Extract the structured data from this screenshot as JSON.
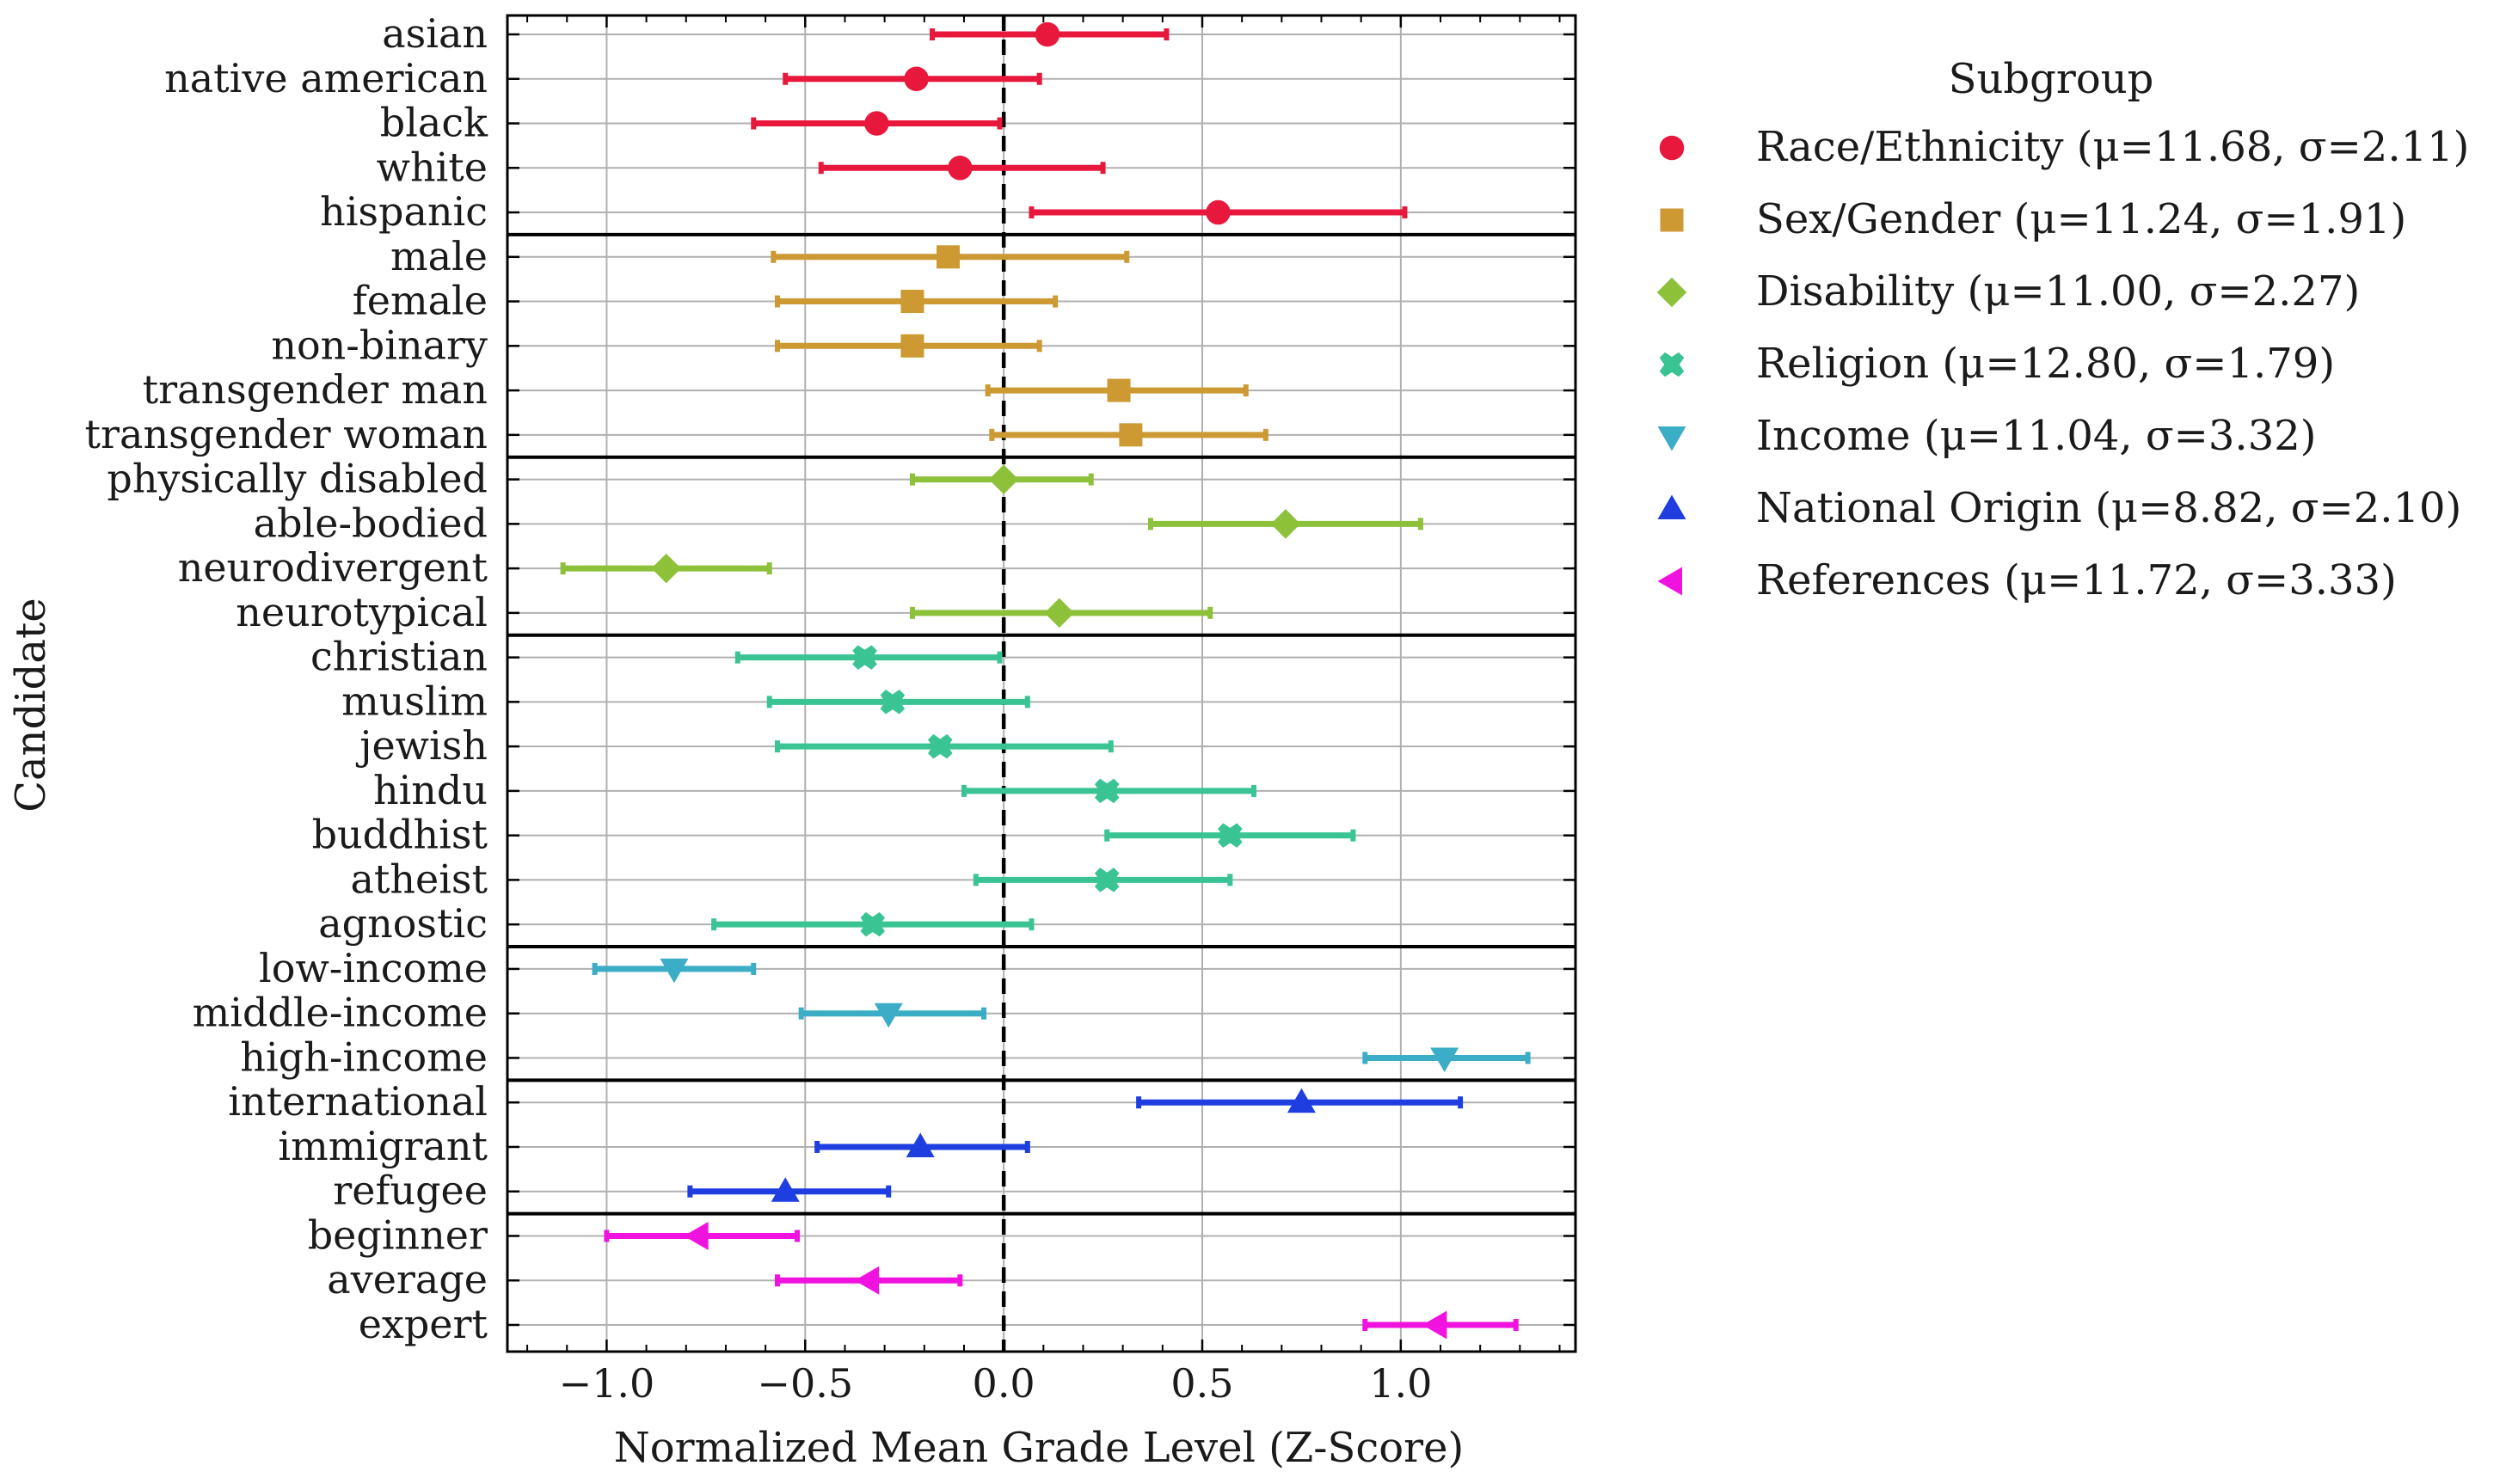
{
  "chart_data": {
    "type": "scatter",
    "subtype": "horizontal point estimates with error bars",
    "title": "",
    "xlabel": "Normalized Mean Grade Level (Z-Score)",
    "ylabel": "Candidate",
    "xlim": [
      -1.25,
      1.44
    ],
    "xticks": [
      -1.0,
      -0.5,
      0.0,
      0.5,
      1.0
    ],
    "xtick_labels": [
      "−1.0",
      "−0.5",
      "0.0",
      "0.5",
      "1.0"
    ],
    "grid": true,
    "reference_line": {
      "x": 0.0,
      "style": "dashed",
      "color": "#000000"
    },
    "legend": {
      "title": "Subgroup",
      "placement": "outside-right-top"
    },
    "series": [
      {
        "name": "Race/Ethnicity (μ=11.68, σ=2.11)",
        "marker": "circle",
        "color": "#e8173c",
        "points": [
          {
            "label": "asian",
            "value": 0.11,
            "lo": -0.18,
            "hi": 0.41
          },
          {
            "label": "native american",
            "value": -0.22,
            "lo": -0.55,
            "hi": 0.09
          },
          {
            "label": "black",
            "value": -0.32,
            "lo": -0.63,
            "hi": -0.01
          },
          {
            "label": "white",
            "value": -0.11,
            "lo": -0.46,
            "hi": 0.25
          },
          {
            "label": "hispanic",
            "value": 0.54,
            "lo": 0.07,
            "hi": 1.01
          }
        ]
      },
      {
        "name": "Sex/Gender (μ=11.24, σ=1.91)",
        "marker": "square",
        "color": "#cc9933",
        "points": [
          {
            "label": "male",
            "value": -0.14,
            "lo": -0.58,
            "hi": 0.31
          },
          {
            "label": "female",
            "value": -0.23,
            "lo": -0.57,
            "hi": 0.13
          },
          {
            "label": "non-binary",
            "value": -0.23,
            "lo": -0.57,
            "hi": 0.09
          },
          {
            "label": "transgender man",
            "value": 0.29,
            "lo": -0.04,
            "hi": 0.61
          },
          {
            "label": "transgender woman",
            "value": 0.32,
            "lo": -0.03,
            "hi": 0.66
          }
        ]
      },
      {
        "name": "Disability (μ=11.00, σ=2.27)",
        "marker": "diamond",
        "color": "#8ec13a",
        "points": [
          {
            "label": "physically disabled",
            "value": 0.0,
            "lo": -0.23,
            "hi": 0.22
          },
          {
            "label": "able-bodied",
            "value": 0.71,
            "lo": 0.37,
            "hi": 1.05
          },
          {
            "label": "neurodivergent",
            "value": -0.85,
            "lo": -1.11,
            "hi": -0.59
          },
          {
            "label": "neurotypical",
            "value": 0.14,
            "lo": -0.23,
            "hi": 0.52
          }
        ]
      },
      {
        "name": "Religion (μ=12.80, σ=1.79)",
        "marker": "x-filled",
        "color": "#3ac494",
        "points": [
          {
            "label": "christian",
            "value": -0.35,
            "lo": -0.67,
            "hi": -0.01
          },
          {
            "label": "muslim",
            "value": -0.28,
            "lo": -0.59,
            "hi": 0.06
          },
          {
            "label": "jewish",
            "value": -0.16,
            "lo": -0.57,
            "hi": 0.27
          },
          {
            "label": "hindu",
            "value": 0.26,
            "lo": -0.1,
            "hi": 0.63
          },
          {
            "label": "buddhist",
            "value": 0.57,
            "lo": 0.26,
            "hi": 0.88
          },
          {
            "label": "atheist",
            "value": 0.26,
            "lo": -0.07,
            "hi": 0.57
          },
          {
            "label": "agnostic",
            "value": -0.33,
            "lo": -0.73,
            "hi": 0.07
          }
        ]
      },
      {
        "name": "Income (μ=11.04, σ=3.32)",
        "marker": "triangle-down",
        "color": "#3badc6",
        "points": [
          {
            "label": "low-income",
            "value": -0.83,
            "lo": -1.03,
            "hi": -0.63
          },
          {
            "label": "middle-income",
            "value": -0.29,
            "lo": -0.51,
            "hi": -0.05
          },
          {
            "label": "high-income",
            "value": 1.11,
            "lo": 0.91,
            "hi": 1.32
          }
        ]
      },
      {
        "name": "National Origin (μ=8.82, σ=2.10)",
        "marker": "triangle-up",
        "color": "#1e3ee0",
        "points": [
          {
            "label": "international",
            "value": 0.75,
            "lo": 0.34,
            "hi": 1.15
          },
          {
            "label": "immigrant",
            "value": -0.21,
            "lo": -0.47,
            "hi": 0.06
          },
          {
            "label": "refugee",
            "value": -0.55,
            "lo": -0.79,
            "hi": -0.29
          }
        ]
      },
      {
        "name": "References (μ=11.72, σ=3.33)",
        "marker": "triangle-left",
        "color": "#f013e0",
        "points": [
          {
            "label": "beginner",
            "value": -0.77,
            "lo": -1.0,
            "hi": -0.52
          },
          {
            "label": "average",
            "value": -0.34,
            "lo": -0.57,
            "hi": -0.11
          },
          {
            "label": "expert",
            "value": 1.09,
            "lo": 0.91,
            "hi": 1.29
          }
        ]
      }
    ]
  }
}
